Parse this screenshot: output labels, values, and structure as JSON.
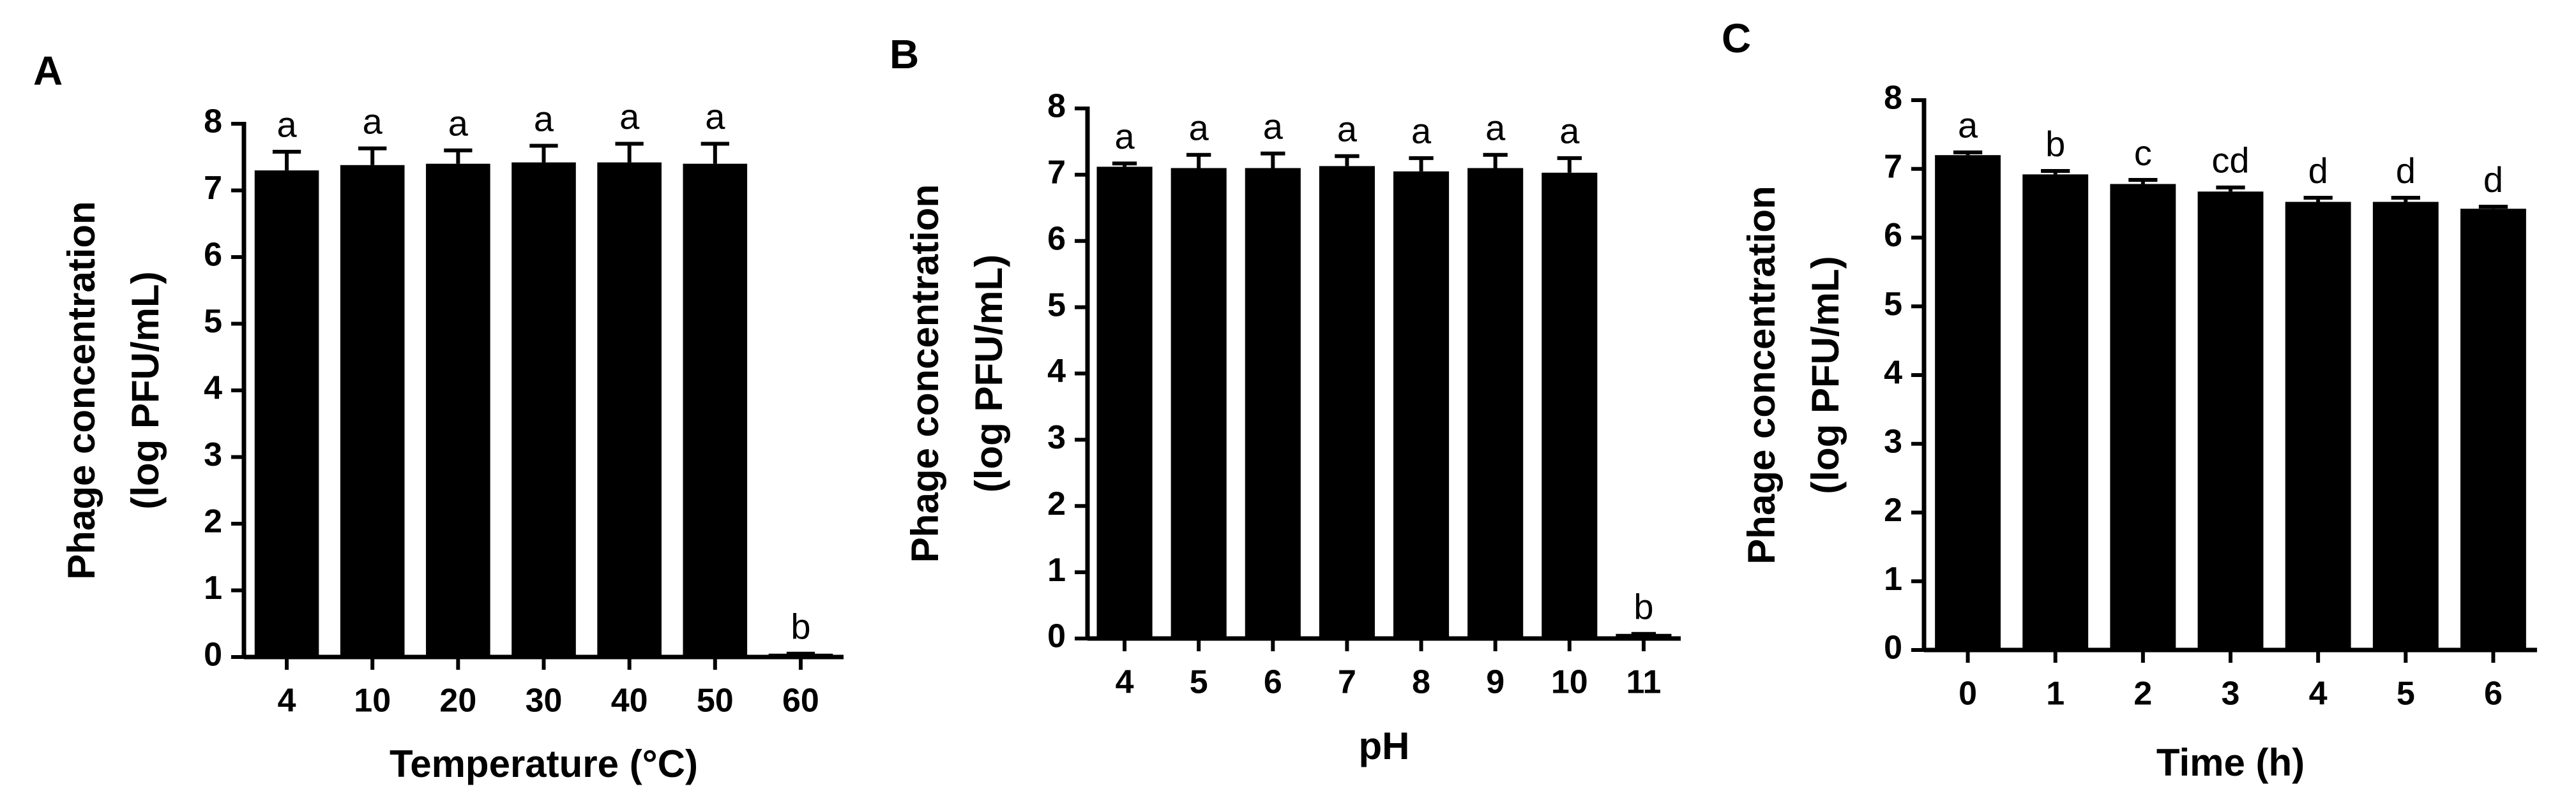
{
  "chart_data": [
    {
      "type": "bar",
      "panel": "A",
      "ylabel": [
        "Phage concentration",
        "(log PFU/mL)"
      ],
      "xlabel": "Temperature (°C)",
      "categories": [
        "4",
        "10",
        "20",
        "30",
        "40",
        "50",
        "60"
      ],
      "values": [
        7.3,
        7.38,
        7.4,
        7.42,
        7.42,
        7.4,
        0.05
      ],
      "errors": [
        0.28,
        0.25,
        0.2,
        0.25,
        0.28,
        0.3,
        0
      ],
      "annotations": [
        "a",
        "a",
        "a",
        "a",
        "a",
        "a",
        "b"
      ],
      "color": "#000000",
      "ylim": [
        0,
        8
      ],
      "yticks": [
        0,
        1,
        2,
        3,
        4,
        5,
        6,
        7,
        8
      ]
    },
    {
      "type": "bar",
      "panel": "B",
      "ylabel": [
        "Phage concentration",
        "(log PFU/mL)"
      ],
      "xlabel": "pH",
      "categories": [
        "4",
        "5",
        "6",
        "7",
        "8",
        "9",
        "10",
        "11"
      ],
      "values": [
        7.12,
        7.1,
        7.1,
        7.13,
        7.05,
        7.1,
        7.03,
        0.07
      ],
      "errors": [
        0.05,
        0.2,
        0.22,
        0.15,
        0.2,
        0.2,
        0.22,
        0
      ],
      "annotations": [
        "a",
        "a",
        "a",
        "a",
        "a",
        "a",
        "a",
        "b"
      ],
      "color": "#000000",
      "ylim": [
        0,
        8
      ],
      "yticks": [
        0,
        1,
        2,
        3,
        4,
        5,
        6,
        7,
        8
      ]
    },
    {
      "type": "bar",
      "panel": "C",
      "ylabel": [
        "Phage concentration",
        "(log PFU/mL)"
      ],
      "xlabel": "Time (h)",
      "categories": [
        "0",
        "1",
        "2",
        "3",
        "4",
        "5",
        "6"
      ],
      "values": [
        7.2,
        6.92,
        6.78,
        6.67,
        6.52,
        6.52,
        6.42
      ],
      "errors": [
        0.04,
        0.05,
        0.06,
        0.06,
        0.06,
        0.06,
        0.03
      ],
      "annotations": [
        "a",
        "b",
        "c",
        "cd",
        "d",
        "d",
        "d"
      ],
      "color": "#000000",
      "ylim": [
        0,
        8
      ],
      "yticks": [
        0,
        1,
        2,
        3,
        4,
        5,
        6,
        7,
        8
      ]
    }
  ]
}
